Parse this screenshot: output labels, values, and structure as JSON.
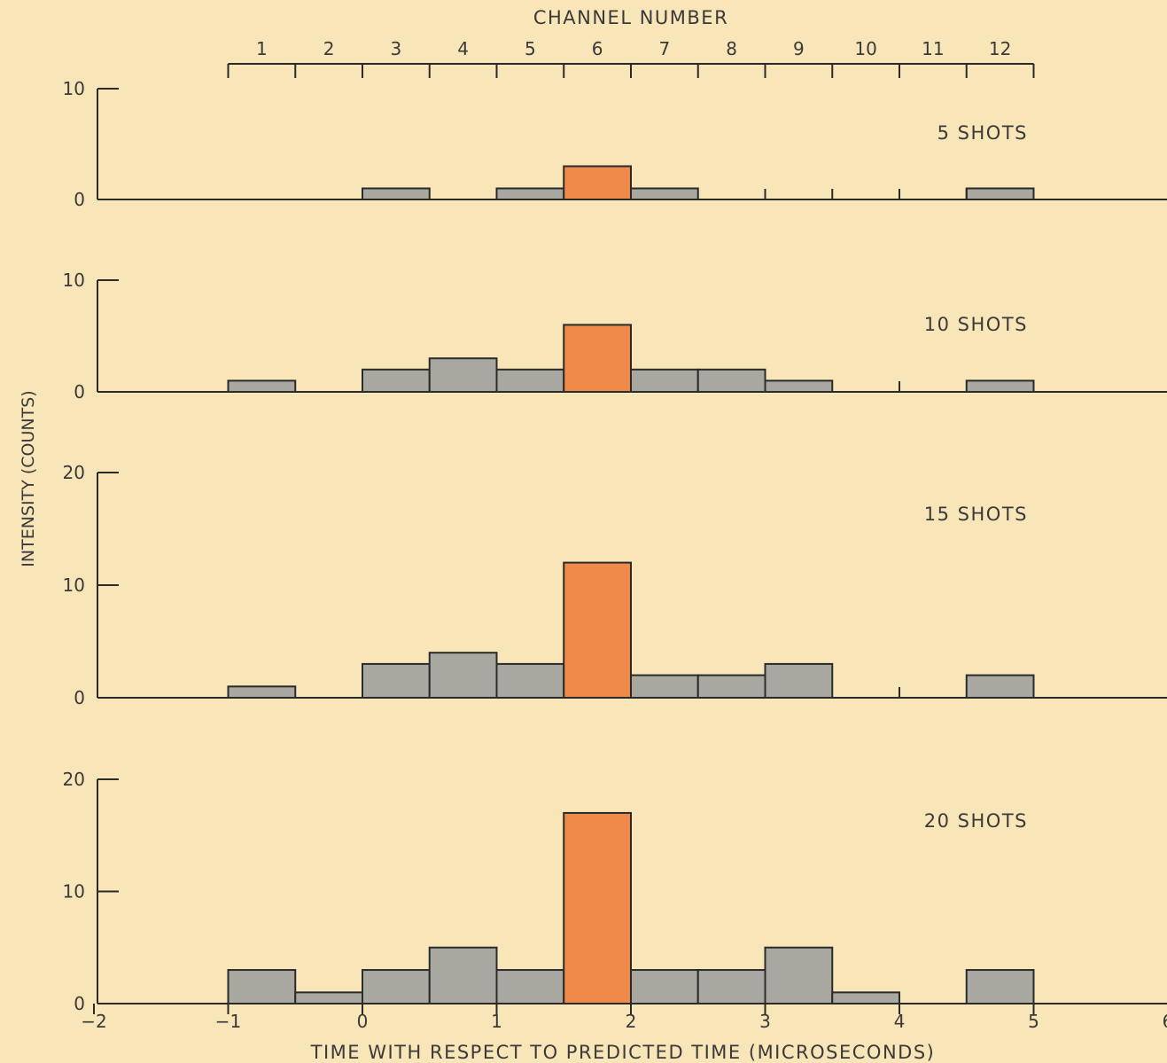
{
  "chart_data": {
    "type": "bar",
    "top_axis": {
      "title": "CHANNEL NUMBER",
      "labels": [
        "1",
        "2",
        "3",
        "4",
        "5",
        "6",
        "7",
        "8",
        "9",
        "10",
        "11",
        "12"
      ]
    },
    "xlabel": "TIME WITH RESPECT TO PREDICTED TIME (MICROSECONDS)",
    "ylabel": "INTENSITY (COUNTS)",
    "xlim": [
      -2,
      6
    ],
    "xticks": [
      -2,
      -1,
      0,
      1,
      2,
      3,
      4,
      5,
      6
    ],
    "xtick_labels": [
      "−2",
      "−1",
      "0",
      "1",
      "2",
      "3",
      "4",
      "5",
      "6"
    ],
    "bin_edges": [
      -1,
      -0.5,
      0,
      0.5,
      1,
      1.5,
      2,
      2.5,
      3,
      3.5,
      4,
      4.5,
      5
    ],
    "highlight_channel": 6,
    "colors": {
      "bar": "#a9a8a0",
      "highlight": "#ef8a4a",
      "background": "#f8e5b8",
      "line": "#2a2a2a"
    },
    "panels": [
      {
        "label": "5 SHOTS",
        "ylim": [
          0,
          10
        ],
        "yticks": [
          "0",
          "10"
        ],
        "values": [
          0,
          0,
          1,
          0,
          1,
          3,
          1,
          0,
          0,
          0,
          0,
          1
        ]
      },
      {
        "label": "10 SHOTS",
        "ylim": [
          0,
          10
        ],
        "yticks": [
          "0",
          "10"
        ],
        "values": [
          1,
          0,
          2,
          3,
          2,
          6,
          2,
          2,
          1,
          0,
          0,
          1
        ]
      },
      {
        "label": "15 SHOTS",
        "ylim": [
          0,
          20
        ],
        "yticks": [
          "0",
          "10",
          "20"
        ],
        "values": [
          1,
          0,
          3,
          4,
          3,
          12,
          2,
          2,
          3,
          0,
          0,
          2
        ]
      },
      {
        "label": "20 SHOTS",
        "ylim": [
          0,
          20
        ],
        "yticks": [
          "0",
          "10",
          "20"
        ],
        "values": [
          3,
          1,
          3,
          5,
          3,
          17,
          3,
          3,
          5,
          1,
          0,
          3
        ]
      }
    ]
  }
}
